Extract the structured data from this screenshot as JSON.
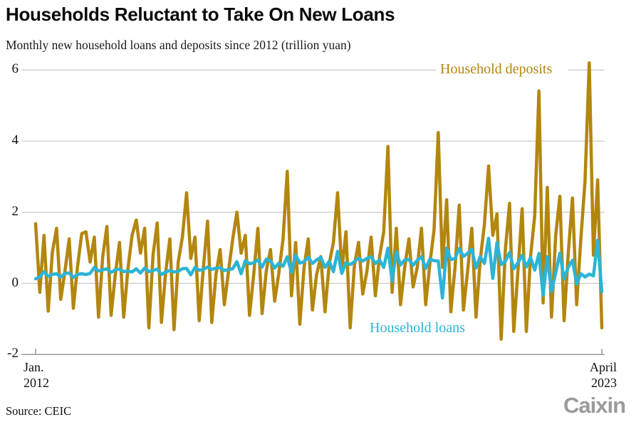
{
  "header": {
    "title": "Households Reluctant to Take On New Loans",
    "subtitle": "Monthly new household loans and deposits since 2012 (trillion yuan)"
  },
  "chart_data": {
    "type": "line",
    "title": "Households Reluctant to Take On New Loans",
    "subtitle": "Monthly new household loans and deposits since 2012 (trillion yuan)",
    "unit": "trillion yuan",
    "ylim": [
      -2,
      6
    ],
    "y_ticks": [
      {
        "value": 6,
        "label": "6"
      },
      {
        "value": 4,
        "label": "4"
      },
      {
        "value": 2,
        "label": "2"
      },
      {
        "value": 0,
        "label": "0"
      },
      {
        "value": -2,
        "label": "-2"
      }
    ],
    "x_axis": {
      "left_line1": "Jan.",
      "left_line2": "2012",
      "right_line1": "April",
      "right_line2": "2023",
      "months_span": "Jan 2012 to Apr 2023"
    },
    "grid_color": "#c9c9c9",
    "axis_color": "#8a8a8a",
    "series": [
      {
        "name": "Household deposits",
        "color": "#b3860e",
        "values": [
          1.68,
          -0.25,
          1.35,
          -0.78,
          0.88,
          1.55,
          -0.45,
          0.35,
          1.25,
          -0.7,
          0.48,
          1.4,
          1.45,
          0.6,
          1.3,
          -0.95,
          0.75,
          1.6,
          -0.9,
          0.25,
          1.15,
          -0.95,
          0.4,
          1.35,
          1.78,
          0.85,
          1.55,
          -1.25,
          0.8,
          1.7,
          -1.1,
          0.3,
          1.25,
          -1.3,
          0.6,
          1.3,
          2.55,
          0.7,
          1.3,
          -1.05,
          0.45,
          1.75,
          -1.1,
          0.25,
          0.95,
          -0.6,
          0.35,
          1.25,
          2.0,
          0.85,
          1.35,
          -0.9,
          0.25,
          1.55,
          -0.85,
          0.35,
          0.95,
          -0.5,
          0.3,
          1.25,
          3.15,
          -0.35,
          1.15,
          -1.15,
          0.45,
          1.25,
          -0.75,
          0.25,
          0.75,
          -0.8,
          0.55,
          1.15,
          2.55,
          0.35,
          1.45,
          -1.25,
          0.5,
          1.15,
          -0.3,
          0.35,
          1.3,
          -0.35,
          0.75,
          1.45,
          3.85,
          -0.25,
          1.55,
          -0.6,
          0.45,
          1.25,
          -0.1,
          0.45,
          1.55,
          -0.6,
          0.55,
          1.5,
          4.24,
          0.45,
          2.35,
          -0.8,
          0.45,
          2.2,
          -0.75,
          0.35,
          1.55,
          -0.95,
          0.65,
          1.65,
          3.3,
          1.35,
          1.95,
          -1.57,
          0.95,
          2.25,
          -1.35,
          0.35,
          2.1,
          -1.35,
          0.75,
          1.9,
          5.41,
          -0.55,
          2.7,
          -0.95,
          1.35,
          2.45,
          -1.05,
          0.85,
          2.4,
          -0.6,
          1.25,
          2.89,
          6.2,
          0.79,
          2.91,
          -1.25
        ]
      },
      {
        "name": "Household loans",
        "color": "#2cb4d6",
        "values": [
          0.13,
          0.18,
          0.33,
          0.2,
          0.25,
          0.27,
          0.18,
          0.28,
          0.29,
          0.17,
          0.25,
          0.27,
          0.25,
          0.28,
          0.45,
          0.35,
          0.38,
          0.41,
          0.31,
          0.38,
          0.4,
          0.33,
          0.35,
          0.32,
          0.41,
          0.29,
          0.43,
          0.33,
          0.36,
          0.4,
          0.25,
          0.32,
          0.36,
          0.32,
          0.34,
          0.41,
          0.42,
          0.24,
          0.45,
          0.37,
          0.39,
          0.46,
          0.39,
          0.43,
          0.44,
          0.36,
          0.39,
          0.41,
          0.61,
          0.27,
          0.64,
          0.55,
          0.58,
          0.66,
          0.46,
          0.68,
          0.64,
          0.43,
          0.57,
          0.48,
          0.75,
          0.31,
          0.8,
          0.57,
          0.61,
          0.74,
          0.56,
          0.66,
          0.73,
          0.45,
          0.62,
          0.33,
          0.9,
          0.28,
          0.58,
          0.53,
          0.61,
          0.71,
          0.63,
          0.7,
          0.75,
          0.56,
          0.66,
          0.45,
          0.99,
          0.07,
          0.89,
          0.52,
          0.66,
          0.67,
          0.51,
          0.65,
          0.75,
          0.42,
          0.68,
          0.64,
          0.63,
          -0.41,
          0.99,
          0.67,
          0.7,
          0.98,
          0.76,
          0.84,
          0.96,
          0.43,
          0.75,
          0.56,
          1.27,
          0.14,
          1.15,
          0.53,
          0.62,
          0.87,
          0.41,
          0.58,
          0.79,
          0.46,
          0.73,
          0.37,
          0.84,
          -0.34,
          0.75,
          -0.22,
          0.29,
          0.85,
          0.12,
          0.46,
          0.65,
          -0.02,
          0.27,
          0.18,
          0.26,
          0.21,
          1.21,
          -0.24
        ]
      }
    ],
    "legend_position": "inline-annotations"
  },
  "footer": {
    "source": "Source: CEIC",
    "logo": "Caixin",
    "logo_color": "#9b9b9b"
  }
}
